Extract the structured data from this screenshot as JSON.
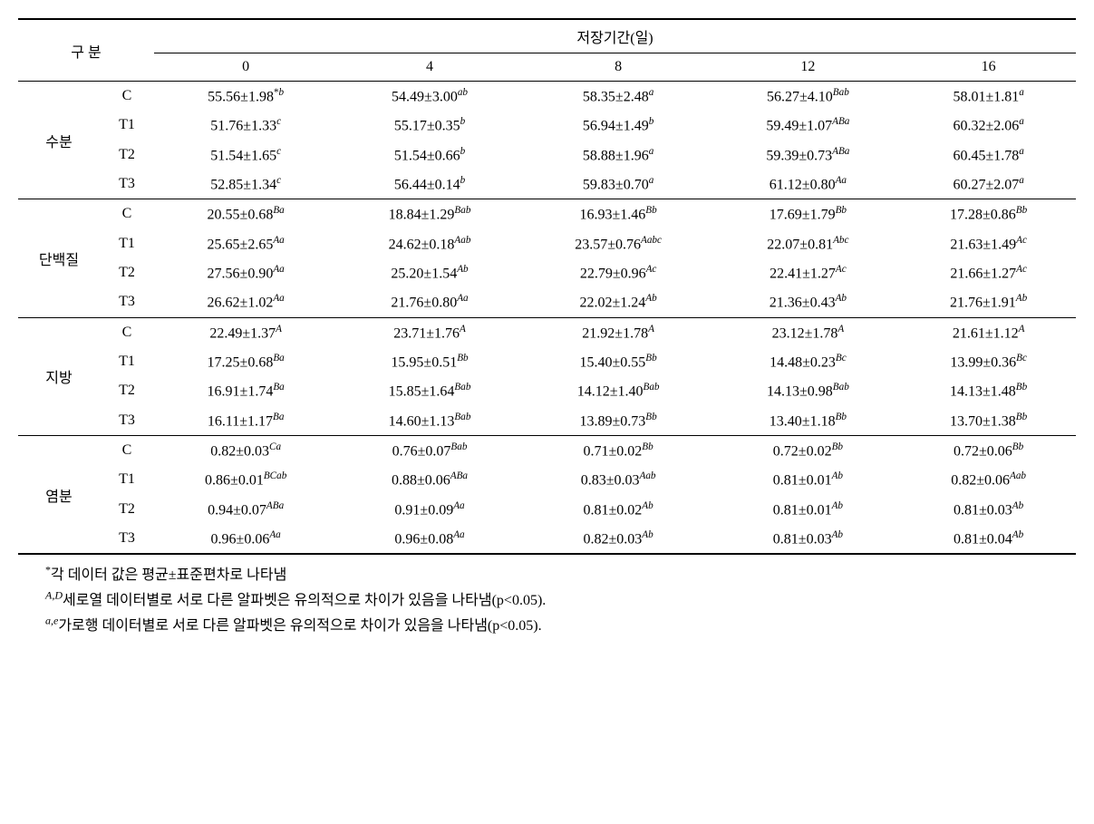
{
  "header": {
    "category_label": "구 분",
    "storage_label": "저장기간(일)",
    "days": [
      "0",
      "4",
      "8",
      "12",
      "16"
    ]
  },
  "groups": [
    {
      "name": "수분",
      "rows": [
        {
          "t": "C",
          "v": [
            {
              "m": "55.56",
              "s": "1.98",
              "sup": "*b"
            },
            {
              "m": "54.49",
              "s": "3.00",
              "sup": "ab"
            },
            {
              "m": "58.35",
              "s": "2.48",
              "sup": "a"
            },
            {
              "m": "56.27",
              "s": "4.10",
              "sup": "Bab"
            },
            {
              "m": "58.01",
              "s": "1.81",
              "sup": "a"
            }
          ]
        },
        {
          "t": "T1",
          "v": [
            {
              "m": "51.76",
              "s": "1.33",
              "sup": "c"
            },
            {
              "m": "55.17",
              "s": "0.35",
              "sup": "b"
            },
            {
              "m": "56.94",
              "s": "1.49",
              "sup": "b"
            },
            {
              "m": "59.49",
              "s": "1.07",
              "sup": "ABa"
            },
            {
              "m": "60.32",
              "s": "2.06",
              "sup": "a"
            }
          ]
        },
        {
          "t": "T2",
          "v": [
            {
              "m": "51.54",
              "s": "1.65",
              "sup": "c"
            },
            {
              "m": "51.54",
              "s": "0.66",
              "sup": "b"
            },
            {
              "m": "58.88",
              "s": "1.96",
              "sup": "a"
            },
            {
              "m": "59.39",
              "s": "0.73",
              "sup": "ABa"
            },
            {
              "m": "60.45",
              "s": "1.78",
              "sup": "a"
            }
          ]
        },
        {
          "t": "T3",
          "v": [
            {
              "m": "52.85",
              "s": "1.34",
              "sup": "c"
            },
            {
              "m": "56.44",
              "s": "0.14",
              "sup": "b"
            },
            {
              "m": "59.83",
              "s": "0.70",
              "sup": "a"
            },
            {
              "m": "61.12",
              "s": "0.80",
              "sup": "Aa"
            },
            {
              "m": "60.27",
              "s": "2.07",
              "sup": "a"
            }
          ]
        }
      ]
    },
    {
      "name": "단백질",
      "rows": [
        {
          "t": "C",
          "v": [
            {
              "m": "20.55",
              "s": "0.68",
              "sup": "Ba"
            },
            {
              "m": "18.84",
              "s": "1.29",
              "sup": "Bab"
            },
            {
              "m": "16.93",
              "s": "1.46",
              "sup": "Bb"
            },
            {
              "m": "17.69",
              "s": "1.79",
              "sup": "Bb"
            },
            {
              "m": "17.28",
              "s": "0.86",
              "sup": "Bb"
            }
          ]
        },
        {
          "t": "T1",
          "v": [
            {
              "m": "25.65",
              "s": "2.65",
              "sup": "Aa"
            },
            {
              "m": "24.62",
              "s": "0.18",
              "sup": "Aab"
            },
            {
              "m": "23.57",
              "s": "0.76",
              "sup": "Aabc"
            },
            {
              "m": "22.07",
              "s": "0.81",
              "sup": "Abc"
            },
            {
              "m": "21.63",
              "s": "1.49",
              "sup": "Ac"
            }
          ]
        },
        {
          "t": "T2",
          "v": [
            {
              "m": "27.56",
              "s": "0.90",
              "sup": "Aa"
            },
            {
              "m": "25.20",
              "s": "1.54",
              "sup": "Ab"
            },
            {
              "m": "22.79",
              "s": "0.96",
              "sup": "Ac"
            },
            {
              "m": "22.41",
              "s": "1.27",
              "sup": "Ac"
            },
            {
              "m": "21.66",
              "s": "1.27",
              "sup": "Ac"
            }
          ]
        },
        {
          "t": "T3",
          "v": [
            {
              "m": "26.62",
              "s": "1.02",
              "sup": "Aa"
            },
            {
              "m": "21.76",
              "s": "0.80",
              "sup": "Aa"
            },
            {
              "m": "22.02",
              "s": "1.24",
              "sup": "Ab"
            },
            {
              "m": "21.36",
              "s": "0.43",
              "sup": "Ab"
            },
            {
              "m": "21.76",
              "s": "1.91",
              "sup": "Ab"
            }
          ]
        }
      ]
    },
    {
      "name": "지방",
      "rows": [
        {
          "t": "C",
          "v": [
            {
              "m": "22.49",
              "s": "1.37",
              "sup": "A"
            },
            {
              "m": "23.71",
              "s": "1.76",
              "sup": "A"
            },
            {
              "m": "21.92",
              "s": "1.78",
              "sup": "A"
            },
            {
              "m": "23.12",
              "s": "1.78",
              "sup": "A"
            },
            {
              "m": "21.61",
              "s": "1.12",
              "sup": "A"
            }
          ]
        },
        {
          "t": "T1",
          "v": [
            {
              "m": "17.25",
              "s": "0.68",
              "sup": "Ba"
            },
            {
              "m": "15.95",
              "s": "0.51",
              "sup": "Bb"
            },
            {
              "m": "15.40",
              "s": "0.55",
              "sup": "Bb"
            },
            {
              "m": "14.48",
              "s": "0.23",
              "sup": "Bc"
            },
            {
              "m": "13.99",
              "s": "0.36",
              "sup": "Bc"
            }
          ]
        },
        {
          "t": "T2",
          "v": [
            {
              "m": "16.91",
              "s": "1.74",
              "sup": "Ba"
            },
            {
              "m": "15.85",
              "s": "1.64",
              "sup": "Bab"
            },
            {
              "m": "14.12",
              "s": "1.40",
              "sup": "Bab"
            },
            {
              "m": "14.13",
              "s": "0.98",
              "sup": "Bab"
            },
            {
              "m": "14.13",
              "s": "1.48",
              "sup": "Bb"
            }
          ]
        },
        {
          "t": "T3",
          "v": [
            {
              "m": "16.11",
              "s": "1.17",
              "sup": "Ba"
            },
            {
              "m": "14.60",
              "s": "1.13",
              "sup": "Bab"
            },
            {
              "m": "13.89",
              "s": "0.73",
              "sup": "Bb"
            },
            {
              "m": "13.40",
              "s": "1.18",
              "sup": "Bb"
            },
            {
              "m": "13.70",
              "s": "1.38",
              "sup": "Bb"
            }
          ]
        }
      ]
    },
    {
      "name": "염분",
      "rows": [
        {
          "t": "C",
          "v": [
            {
              "m": "0.82",
              "s": "0.03",
              "sup": "Ca"
            },
            {
              "m": "0.76",
              "s": "0.07",
              "sup": "Bab"
            },
            {
              "m": "0.71",
              "s": "0.02",
              "sup": "Bb"
            },
            {
              "m": "0.72",
              "s": "0.02",
              "sup": "Bb"
            },
            {
              "m": "0.72",
              "s": "0.06",
              "sup": "Bb"
            }
          ]
        },
        {
          "t": "T1",
          "v": [
            {
              "m": "0.86",
              "s": "0.01",
              "sup": "BCab"
            },
            {
              "m": "0.88",
              "s": "0.06",
              "sup": "ABa"
            },
            {
              "m": "0.83",
              "s": "0.03",
              "sup": "Aab"
            },
            {
              "m": "0.81",
              "s": "0.01",
              "sup": "Ab"
            },
            {
              "m": "0.82",
              "s": "0.06",
              "sup": "Aab"
            }
          ]
        },
        {
          "t": "T2",
          "v": [
            {
              "m": "0.94",
              "s": "0.07",
              "sup": "ABa"
            },
            {
              "m": "0.91",
              "s": "0.09",
              "sup": "Aa"
            },
            {
              "m": "0.81",
              "s": "0.02",
              "sup": "Ab"
            },
            {
              "m": "0.81",
              "s": "0.01",
              "sup": "Ab"
            },
            {
              "m": "0.81",
              "s": "0.03",
              "sup": "Ab"
            }
          ]
        },
        {
          "t": "T3",
          "v": [
            {
              "m": "0.96",
              "s": "0.06",
              "sup": "Aa"
            },
            {
              "m": "0.96",
              "s": "0.08",
              "sup": "Aa"
            },
            {
              "m": "0.82",
              "s": "0.03",
              "sup": "Ab"
            },
            {
              "m": "0.81",
              "s": "0.03",
              "sup": "Ab"
            },
            {
              "m": "0.81",
              "s": "0.04",
              "sup": "Ab"
            }
          ]
        }
      ]
    }
  ],
  "footnotes": {
    "f1_sup": "*",
    "f1": "각 데이터 값은 평균±표준편차로 나타냄",
    "f2_sup": "A,D",
    "f2": "세로열 데이터별로 서로 다른 알파벳은 유의적으로 차이가 있음을 나타냄(p<0.05).",
    "f3_sup": "a,e",
    "f3": "가로행 데이터별로 서로 다른 알파벳은 유의적으로 차이가 있음을 나타냄(p<0.05)."
  }
}
